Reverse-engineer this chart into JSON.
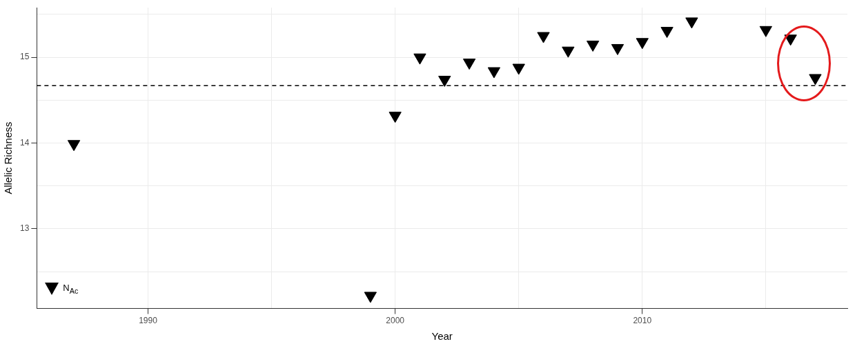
{
  "chart_data": {
    "type": "scatter",
    "xlabel": "Year",
    "ylabel": "Allelic Richness",
    "series": [
      {
        "name": "N$_{Ac}$",
        "color": "#000000",
        "x": [
          1987,
          1999,
          2000,
          2001,
          2002,
          2003,
          2004,
          2005,
          2006,
          2007,
          2008,
          2009,
          2010,
          2011,
          2012,
          2015,
          2016,
          2017
        ],
        "values": [
          13.99,
          12.22,
          14.32,
          15.0,
          14.74,
          14.94,
          14.84,
          14.88,
          15.25,
          15.08,
          15.15,
          15.11,
          15.18,
          15.31,
          15.42,
          15.32,
          15.22,
          14.76
        ]
      }
    ],
    "marker": "triangle",
    "xlim": [
      1985.5,
      2018.3
    ],
    "xticks": [
      1990,
      {
        "value": 1995,
        "label": null
      },
      2000,
      {
        "value": 2005,
        "label": null
      },
      2010,
      {
        "value": 2015,
        "label": null
      }
    ],
    "ylim": [
      12.07,
      15.58
    ],
    "yticks": [
      {
        "value": 12.5,
        "label": null
      },
      13,
      {
        "value": 13.5,
        "label": null
      },
      14,
      {
        "value": 14.5,
        "label": null
      },
      15,
      {
        "value": 15.5,
        "label": null
      }
    ],
    "ref_lines": [
      {
        "axis": "y",
        "value": 14.67,
        "color": "#000000",
        "line_style": "dashed"
      }
    ],
    "grid": true,
    "legend": "bottom left"
  }
}
